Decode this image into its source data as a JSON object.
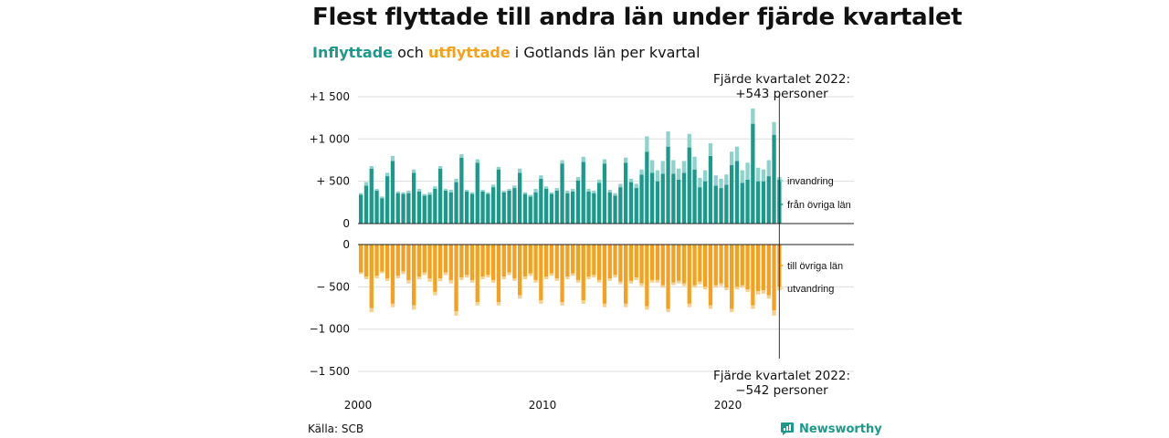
{
  "header": {
    "title": "Flest flyttade till andra län under fjärde kvartalet",
    "subtitle_part1": "Inflyttade",
    "subtitle_part2": "och",
    "subtitle_part3": "utflyttade",
    "subtitle_part4": "i Gotlands län per kvartal"
  },
  "footer": {
    "source": "Källa: SCB",
    "brand": "Newsworthy"
  },
  "colors": {
    "inflow_dark": "#1b998b",
    "inflow_light": "#8ed3cb",
    "outflow_dark": "#f5a11d",
    "outflow_light": "#f8cf8c",
    "grid": "#dddddd",
    "baseline": "#222222"
  },
  "chart_data": {
    "type": "bar",
    "stacked": true,
    "x_start": "2000 Q1",
    "x_end": "2022 Q4",
    "x_tick_labels": [
      "2000",
      "2010",
      "2020"
    ],
    "top_panel": {
      "y_tick_labels": [
        "0",
        "+  500",
        "+1 000",
        "+1 500"
      ],
      "ylim": [
        0,
        1500
      ],
      "series": [
        {
          "name": "från övriga län",
          "values": [
            340,
            450,
            650,
            390,
            300,
            560,
            740,
            360,
            350,
            360,
            600,
            380,
            330,
            340,
            410,
            650,
            390,
            370,
            490,
            780,
            380,
            350,
            720,
            380,
            350,
            430,
            640,
            370,
            390,
            420,
            600,
            350,
            320,
            370,
            530,
            410,
            350,
            390,
            710,
            360,
            380,
            510,
            730,
            380,
            360,
            480,
            710,
            370,
            330,
            430,
            720,
            490,
            420,
            580,
            850,
            600,
            500,
            590,
            910,
            590,
            520,
            600,
            900,
            640,
            430,
            500,
            800,
            450,
            420,
            460,
            690,
            740,
            480,
            520,
            1180,
            500,
            500,
            560,
            1050,
            520
          ]
        },
        {
          "name": "invandring",
          "values": [
            20,
            40,
            30,
            20,
            20,
            40,
            60,
            20,
            20,
            30,
            40,
            30,
            20,
            30,
            30,
            30,
            20,
            30,
            40,
            40,
            20,
            20,
            40,
            20,
            20,
            30,
            30,
            20,
            20,
            30,
            50,
            20,
            20,
            40,
            40,
            30,
            20,
            30,
            40,
            30,
            30,
            40,
            60,
            30,
            30,
            40,
            50,
            30,
            30,
            40,
            60,
            40,
            50,
            60,
            180,
            150,
            130,
            150,
            180,
            160,
            130,
            140,
            160,
            150,
            110,
            130,
            150,
            120,
            110,
            120,
            160,
            170,
            150,
            200,
            180,
            160,
            140,
            190,
            150,
            30
          ]
        }
      ],
      "end_bar_labels": [
        "invandring",
        "från övriga län"
      ],
      "annotation": "Fjärde kvartalet 2022:\n+543 personer"
    },
    "bottom_panel": {
      "y_tick_labels": [
        "0",
        "−  500",
        "−1 000",
        "−1 500"
      ],
      "ylim": [
        -1500,
        0
      ],
      "series": [
        {
          "name": "till övriga län",
          "values": [
            -330,
            -380,
            -750,
            -370,
            -320,
            -400,
            -700,
            -370,
            -320,
            -420,
            -720,
            -380,
            -330,
            -400,
            -560,
            -400,
            -330,
            -420,
            -790,
            -390,
            -360,
            -420,
            -680,
            -380,
            -360,
            -420,
            -680,
            -380,
            -330,
            -400,
            -600,
            -380,
            -340,
            -420,
            -660,
            -380,
            -340,
            -400,
            -680,
            -380,
            -340,
            -420,
            -660,
            -380,
            -360,
            -420,
            -700,
            -400,
            -360,
            -440,
            -700,
            -430,
            -390,
            -460,
            -730,
            -420,
            -420,
            -480,
            -760,
            -450,
            -430,
            -460,
            -700,
            -480,
            -440,
            -500,
            -720,
            -480,
            -460,
            -510,
            -760,
            -500,
            -480,
            -530,
            -720,
            -550,
            -540,
            -600,
            -780,
            -500
          ]
        },
        {
          "name": "utvandring",
          "values": [
            -20,
            -30,
            -50,
            -30,
            -20,
            -30,
            -40,
            -30,
            -30,
            -40,
            -50,
            -30,
            -30,
            -40,
            -40,
            -30,
            -30,
            -40,
            -50,
            -30,
            -30,
            -30,
            -40,
            -30,
            -30,
            -30,
            -40,
            -30,
            -30,
            -30,
            -40,
            -30,
            -30,
            -30,
            -40,
            -30,
            -30,
            -30,
            -40,
            -30,
            -30,
            -30,
            -40,
            -30,
            -30,
            -30,
            -40,
            -30,
            -30,
            -30,
            -40,
            -30,
            -30,
            -30,
            -40,
            -30,
            -30,
            -30,
            -40,
            -30,
            -30,
            -30,
            -40,
            -30,
            -30,
            -30,
            -40,
            -30,
            -30,
            -30,
            -40,
            -30,
            -30,
            -30,
            -40,
            -40,
            -40,
            -40,
            -60,
            -42
          ]
        }
      ],
      "end_bar_labels": [
        "till övriga län",
        "utvandring"
      ],
      "annotation": "Fjärde kvartalet 2022:\n−542 personer"
    }
  }
}
